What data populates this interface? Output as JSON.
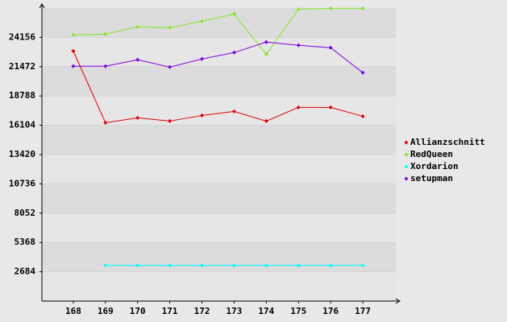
{
  "chart_data": {
    "type": "line",
    "categories": [
      "168",
      "169",
      "170",
      "171",
      "172",
      "173",
      "174",
      "175",
      "176",
      "177"
    ],
    "series": [
      {
        "name": "Allianzschnitt",
        "color": "#e00000",
        "values": [
          22905,
          16337,
          16780,
          16485,
          17001,
          17370,
          16485,
          17739,
          17739,
          16927
        ]
      },
      {
        "name": "RedQueen",
        "color": "#80e820",
        "values": [
          24378,
          24452,
          25116,
          25042,
          25632,
          26296,
          22607,
          26739,
          26812,
          26812
        ]
      },
      {
        "name": "Xordarion",
        "color": "#00ffff",
        "values": [
          null,
          3276,
          3276,
          3276,
          3276,
          3276,
          3276,
          3276,
          3276,
          3276
        ]
      },
      {
        "name": "setupman",
        "color": "#7f00e0",
        "values": [
          21509,
          21509,
          22099,
          21435,
          22173,
          22763,
          23722,
          23427,
          23206,
          20919
        ]
      }
    ],
    "ylim": [
      0,
      26840
    ],
    "yticks": [
      2684,
      5368,
      8052,
      10736,
      13420,
      16104,
      18788,
      21472,
      24156
    ],
    "grid": true,
    "legend": "right"
  }
}
